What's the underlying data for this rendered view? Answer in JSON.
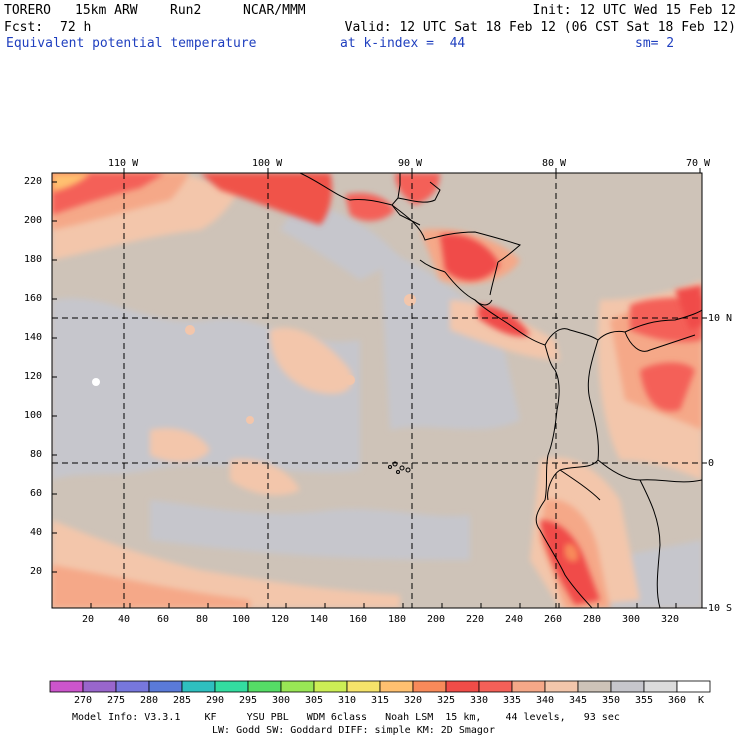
{
  "header": {
    "model": "TORERO",
    "resolution": "15km ARW",
    "run": "Run2",
    "org": "NCAR/MMM",
    "init": "Init: 12 UTC Wed 15 Feb 12",
    "fcst_label": "Fcst:",
    "fcst_value": "72 h",
    "valid": "Valid: 12 UTC Sat 18 Feb 12 (06 CST Sat 18 Feb 12)",
    "field": "Equivalent potential temperature",
    "level": "at k-index =  44",
    "smoothing": "sm= 2"
  },
  "map": {
    "top_lon_labels": [
      "110 W",
      "100 W",
      "90 W",
      "80 W",
      "70 W"
    ],
    "right_lat_labels": [
      "10 N",
      "0",
      "10 S"
    ],
    "left_y_ticks": [
      "220",
      "200",
      "180",
      "160",
      "140",
      "120",
      "100",
      "80",
      "60",
      "40",
      "20"
    ],
    "bottom_x_ticks": [
      "20",
      "40",
      "60",
      "80",
      "100",
      "120",
      "140",
      "160",
      "180",
      "200",
      "220",
      "240",
      "260",
      "280",
      "300",
      "320"
    ]
  },
  "colorbar": {
    "labels": [
      "270",
      "275",
      "280",
      "285",
      "290",
      "295",
      "300",
      "305",
      "310",
      "315",
      "320",
      "325",
      "330",
      "335",
      "340",
      "345",
      "350",
      "355",
      "360"
    ],
    "unit": "K",
    "colors": [
      "#cc55cc",
      "#9966cc",
      "#7777dd",
      "#5a7ad8",
      "#2fbfbf",
      "#33dda0",
      "#55dd66",
      "#99e655",
      "#ccee55",
      "#f5e36a",
      "#ffc070",
      "#f88a5a",
      "#f04c48",
      "#f46058",
      "#f5a888",
      "#f3c6ab",
      "#cec3b8",
      "#c6c6cc",
      "#dcdcdc",
      "#ffffff"
    ]
  },
  "footer": {
    "line1": "Model Info: V3.3.1    KF     YSU PBL   WDM 6class   Noah LSM  15 km,    44 levels,   93 sec",
    "line2": "LW: Godd SW: Goddard DIFF: simple KM: 2D Smagor"
  }
}
